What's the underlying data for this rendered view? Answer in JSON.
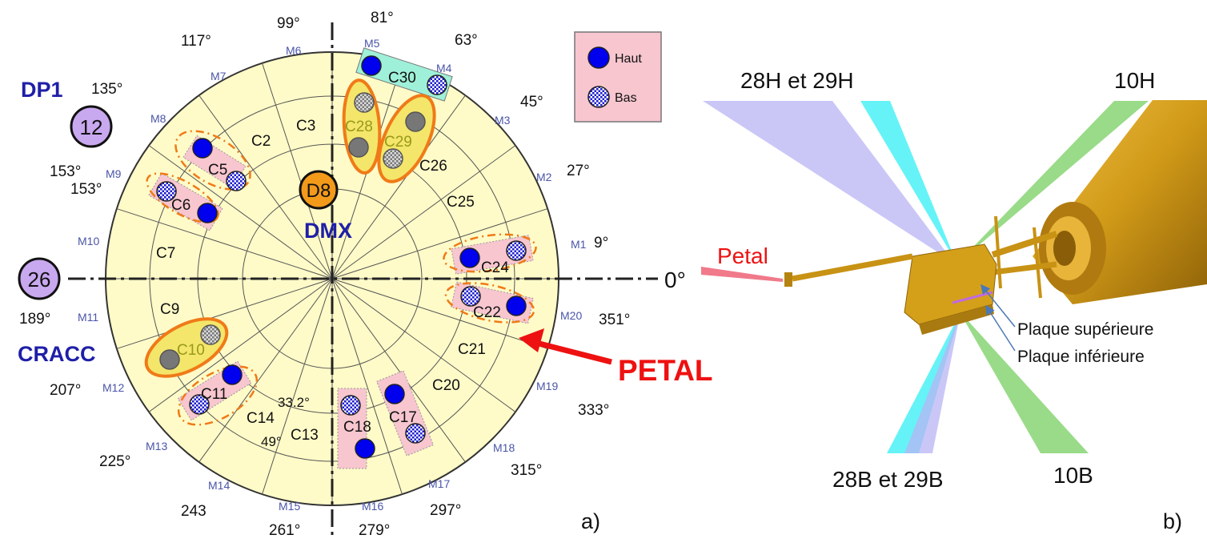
{
  "left": {
    "degrees": {
      "d99": "99°",
      "d81": "81°",
      "d117": "117°",
      "d63": "63°",
      "d135": "135°",
      "d45": "45°",
      "d153a": "153°",
      "d153b": "153°",
      "d27": "27°",
      "d9": "9°",
      "d0": "0°",
      "d189": "189°",
      "d351": "351°",
      "d207": "207°",
      "d333": "333°",
      "d225": "225°",
      "d315": "315°",
      "d243": "243",
      "d297": "297°",
      "d261": "261°",
      "d279": "279°"
    },
    "modules": [
      "M1",
      "M2",
      "M3",
      "M4",
      "M5",
      "M6",
      "M7",
      "M8",
      "M9",
      "M10",
      "M11",
      "M12",
      "M13",
      "M14",
      "M15",
      "M16",
      "M17",
      "M18",
      "M19",
      "M20"
    ],
    "cells": {
      "C2": "C2",
      "C3": "C3",
      "C5": "C5",
      "C6": "C6",
      "C7": "C7",
      "C9": "C9",
      "C10": "C10",
      "C11": "C11",
      "C13": "C13",
      "C14": "C14",
      "C17": "C17",
      "C18": "C18",
      "C20": "C20",
      "C21": "C21",
      "C22": "C22",
      "C24": "C24",
      "C25": "C25",
      "C26": "C26",
      "C28": "C28",
      "C29": "C29",
      "C30": "C30"
    },
    "inner_angles": {
      "a332": "33.2°",
      "a49": "49°"
    },
    "detectors": {
      "dp1": "DP1",
      "cracc": "CRACC",
      "dmx": "DMX",
      "n12": "12",
      "n26": "26",
      "d8": "D8"
    },
    "petal_label": "PETAL",
    "legend": {
      "haut": "Haut",
      "bas": "Bas"
    },
    "panel_label": "a)"
  },
  "right": {
    "beams": {
      "b28h": "28H et 29H",
      "b10h": "10H",
      "b28b": "28B et 29B",
      "b10b": "10B"
    },
    "petal": "Petal",
    "plates": {
      "upper": "Plaque supérieure",
      "lower": "Plaque inférieure"
    },
    "panel_label": "b)"
  },
  "colors": {
    "disk": "#fffbc8",
    "pink": "#f7c6cf",
    "blue": "#0000ee",
    "orange": "#f07a18",
    "violet": "#c8a8ef",
    "gold": "#d4a01a",
    "teal": "#9ff0d8",
    "red": "#ee1111"
  }
}
